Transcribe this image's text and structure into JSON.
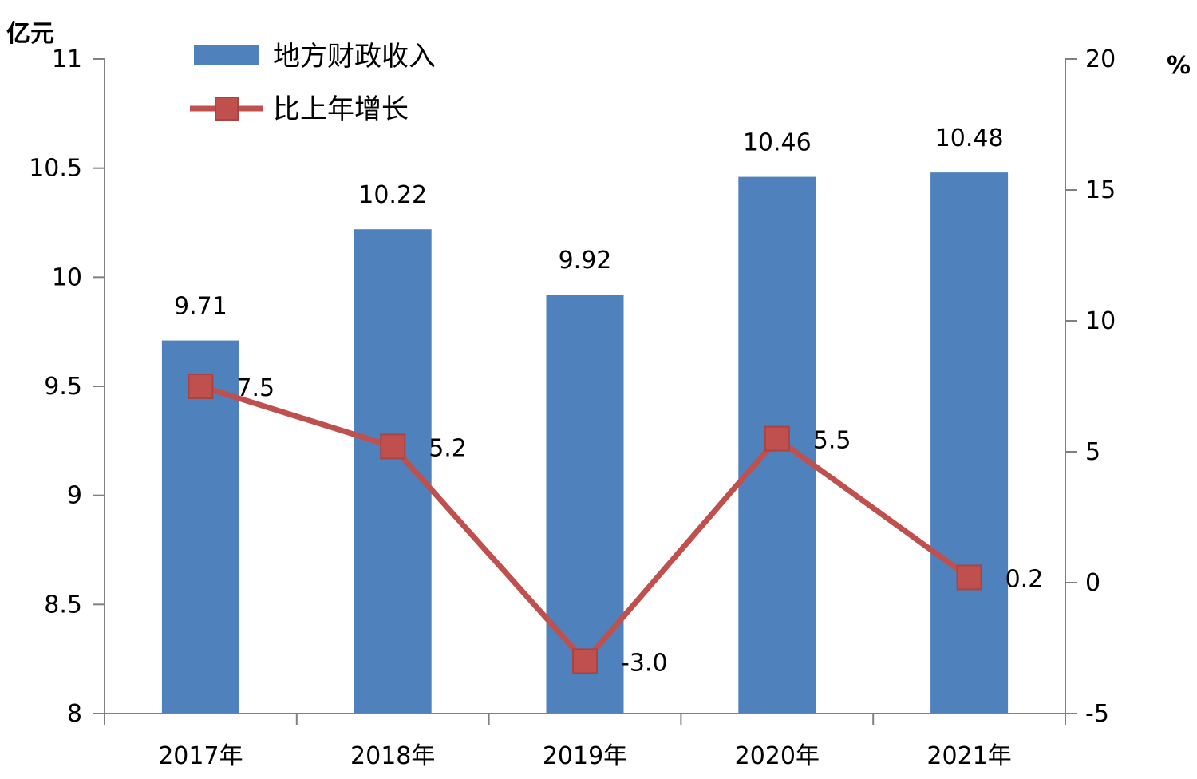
{
  "chart_data": {
    "type": "bar+line",
    "categories": [
      "2017年",
      "2018年",
      "2019年",
      "2020年",
      "2021年"
    ],
    "series": [
      {
        "name": "地方财政收入",
        "type": "bar",
        "axis": "left",
        "color": "#4F81BD",
        "values": [
          9.71,
          10.22,
          9.92,
          10.46,
          10.48
        ],
        "labels": [
          "9.71",
          "10.22",
          "9.92",
          "10.46",
          "10.48"
        ]
      },
      {
        "name": "比上年增长",
        "type": "line",
        "axis": "right",
        "color": "#C0504D",
        "marker": "square",
        "values": [
          7.5,
          5.2,
          -3.0,
          5.5,
          0.2
        ],
        "labels": [
          "7.5",
          "5.2",
          "-3.0",
          "5.5",
          "0.2"
        ]
      }
    ],
    "y_left": {
      "unit": "亿元",
      "range": [
        8,
        11
      ],
      "ticks": [
        "8",
        "8.5",
        "9",
        "9.5",
        "10",
        "10.5",
        "11"
      ]
    },
    "y_right": {
      "unit": "%",
      "range": [
        -5,
        20
      ],
      "ticks": [
        "-5",
        "0",
        "5",
        "10",
        "15",
        "20"
      ]
    },
    "grid": false,
    "legend_position": "top-left"
  }
}
